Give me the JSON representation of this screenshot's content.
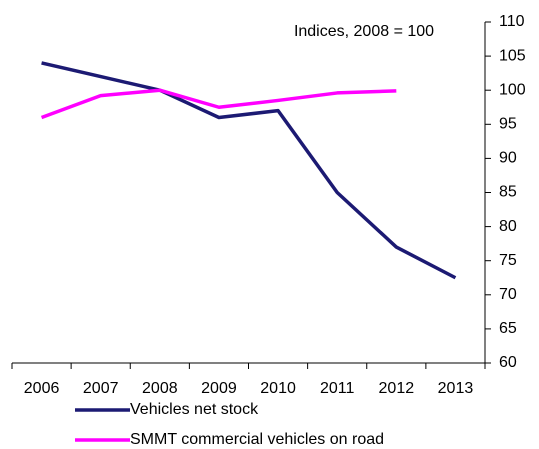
{
  "chart_data": {
    "type": "line",
    "annotation": "Indices, 2008 = 100",
    "categories": [
      "2006",
      "2007",
      "2008",
      "2009",
      "2010",
      "2011",
      "2012",
      "2013"
    ],
    "series": [
      {
        "name": "Vehicles net stock",
        "color": "#1c1a73",
        "values": [
          104,
          102,
          100,
          96,
          97,
          85,
          77,
          72.5
        ]
      },
      {
        "name": "SMMT commercial vehicles on road",
        "color": "#ff00ff",
        "values": [
          96,
          99.2,
          100,
          97.5,
          98.5,
          99.6,
          99.9,
          null
        ]
      }
    ],
    "ylim": [
      60,
      110
    ],
    "yticks": [
      60,
      65,
      70,
      75,
      80,
      85,
      90,
      95,
      100,
      105,
      110
    ],
    "y_axis_side": "right",
    "grid": false
  }
}
